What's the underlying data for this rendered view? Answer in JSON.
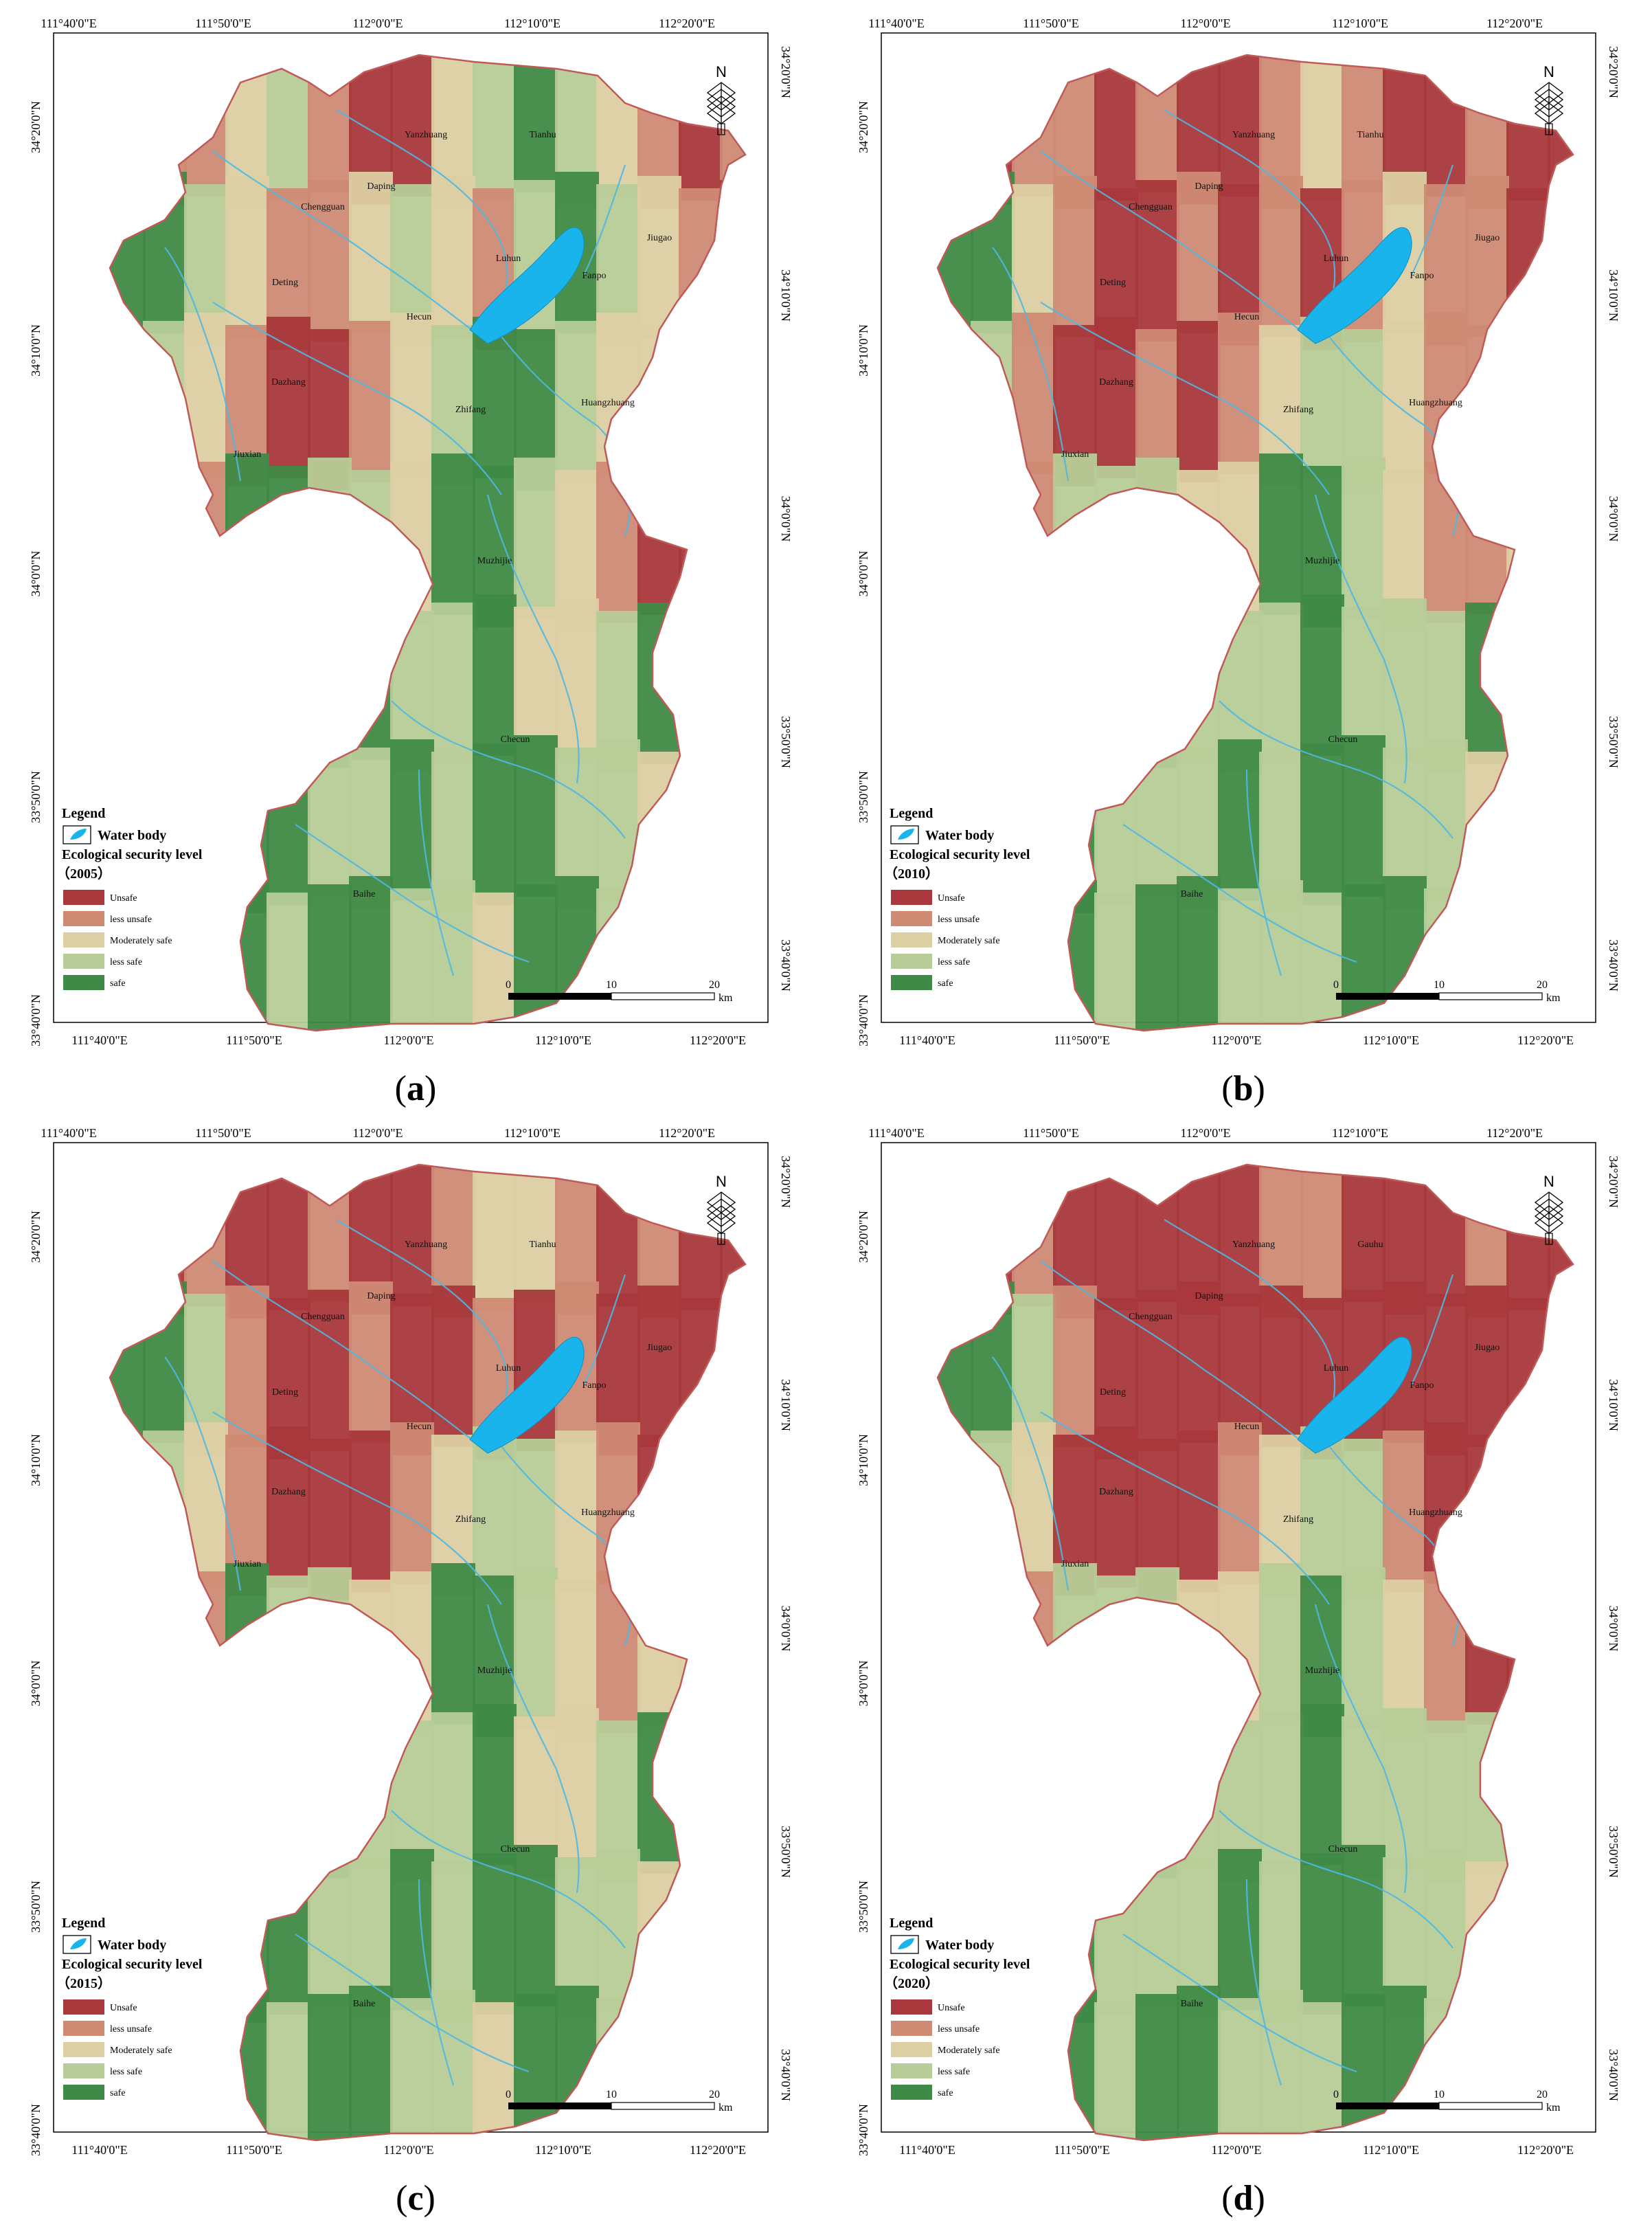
{
  "figure": {
    "colors": {
      "unsafe": "#a8383b",
      "less_unsafe": "#cf8a74",
      "moderately_safe": "#dccfa3",
      "less_safe": "#b7cc98",
      "safe": "#3f8a46",
      "water": "#19b4ec",
      "river": "#4eb8e0",
      "boundary": "#c05a57"
    },
    "axes": {
      "lon_top": [
        "111°40'0\"E",
        "111°50'0\"E",
        "112°0'0\"E",
        "112°10'0\"E",
        "112°20'0\"E"
      ],
      "lon_bottom": [
        "111°40'0\"E",
        "111°50'0\"E",
        "112°0'0\"E",
        "112°10'0\"E",
        "112°20'0\"E"
      ],
      "lat_left": [
        "34°20'0\"N",
        "34°10'0\"N",
        "34°0'0\"N",
        "33°50'0\"N",
        "33°40'0\"N"
      ],
      "lat_right": [
        "34°20'0\"N",
        "34°10'0\"N",
        "34°0'0\"N",
        "33°50'0\"N",
        "33°40'0\"N"
      ]
    },
    "north_label": "N",
    "places": [
      "Yanzhuang",
      "Tianhu",
      "Daping",
      "Chengguan",
      "Luhun",
      "Jiugao",
      "Fanpo",
      "Deting",
      "Hecun",
      "Dazhang",
      "Huangzhuang",
      "Zhifang",
      "Jiuxian",
      "Muzhijie",
      "Checun",
      "Baihe"
    ],
    "legend": {
      "title": "Legend",
      "water_body": "Water body",
      "subtitle": "Ecological security level",
      "classes": [
        "Unsafe",
        "less unsafe",
        "Moderately safe",
        "less safe",
        "safe"
      ]
    },
    "scale": {
      "labels": [
        "0",
        "10",
        "20"
      ],
      "unit": "km"
    },
    "panels": [
      {
        "id": "a",
        "caption_text": "a",
        "year": "（2005）",
        "label_overrides": {}
      },
      {
        "id": "b",
        "caption_text": "b",
        "year": "（2010）",
        "label_overrides": {}
      },
      {
        "id": "c",
        "caption_text": "c",
        "year": "（2015）",
        "label_overrides": {}
      },
      {
        "id": "d",
        "caption_text": "d",
        "year": "（2020）",
        "label_overrides": {
          "Tianhu": "Gauhu",
          "Jiugao": "Jiugao"
        }
      }
    ],
    "panel_d_label_text": "Gauhu",
    "panel_d_jiugao": "Jiugao"
  }
}
